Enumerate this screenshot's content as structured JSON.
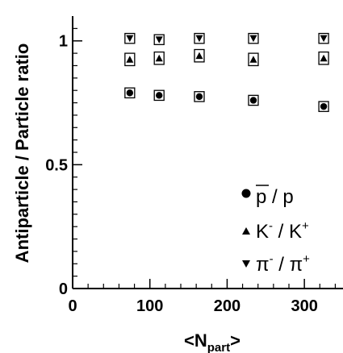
{
  "chart_data": {
    "type": "scatter",
    "title": "",
    "xlabel": "<N",
    "xlabel_sub": "part",
    "xlabel_end": ">",
    "ylabel": "Antiparticle / Particle ratio",
    "xlim": [
      0,
      350
    ],
    "ylim": [
      0,
      1.1
    ],
    "x_ticks": [
      0,
      100,
      200,
      300
    ],
    "y_ticks": [
      0,
      0.5,
      1
    ],
    "x_tick_labels": [
      "0",
      "100",
      "200",
      "300"
    ],
    "y_tick_labels": [
      "0",
      "0.5",
      "1"
    ],
    "grid": false,
    "legend_position": "bottom-right",
    "x": [
      74,
      112,
      164,
      234,
      325
    ],
    "series": [
      {
        "key": "pbar_p",
        "label_main": "p / p",
        "marker": "circle",
        "values": [
          0.79,
          0.78,
          0.775,
          0.76,
          0.735
        ],
        "syst": [
          0.02,
          0.02,
          0.02,
          0.02,
          0.02
        ]
      },
      {
        "key": "km_kp",
        "label_main": "K",
        "label_sup1": "-",
        "label_mid": " / K",
        "label_sup2": "+",
        "marker": "triangle-up",
        "values": [
          0.925,
          0.93,
          0.94,
          0.925,
          0.93
        ],
        "syst": [
          0.025,
          0.025,
          0.025,
          0.025,
          0.025
        ]
      },
      {
        "key": "pim_pip",
        "label_main": "π",
        "label_sup1": "-",
        "label_mid": " / π",
        "label_sup2": "+",
        "marker": "triangle-down",
        "values": [
          1.01,
          1.005,
          1.01,
          1.01,
          1.01
        ],
        "syst": [
          0.02,
          0.02,
          0.02,
          0.02,
          0.02
        ]
      }
    ]
  }
}
